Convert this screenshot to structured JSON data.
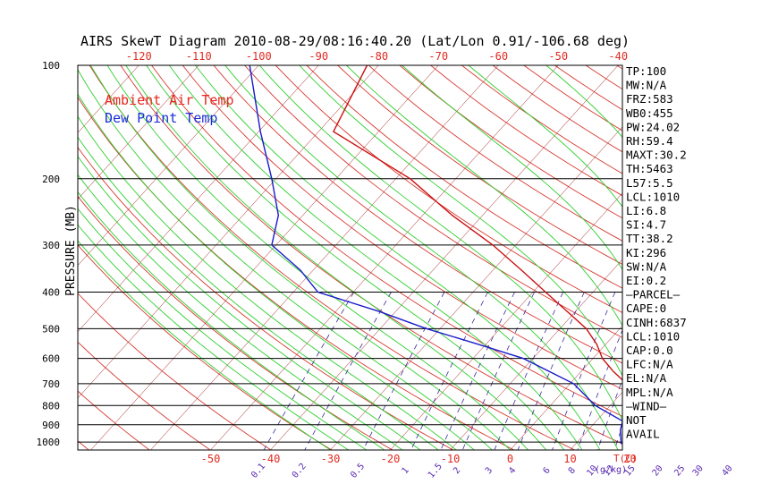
{
  "chart_data": {
    "type": "line",
    "title": "AIRS SkewT Diagram 2010-08-29/08:16:40.20 (Lat/Lon 0.91/-106.68 deg)",
    "ylabel": "PRESSURE (MB)",
    "x_units_label": "T(C)",
    "mixing_units_label": "(g/kg)",
    "ylim": [
      1050,
      100
    ],
    "y_scale": "log",
    "top_temp_ticks": [
      "-120",
      "-110",
      "-100",
      "-90",
      "-80",
      "-70",
      "-60",
      "-50",
      "-40"
    ],
    "bottom_temp_ticks": [
      "-50",
      "-40",
      "-30",
      "-20",
      "-10",
      "0",
      "10",
      "20"
    ],
    "mixing_ratio_ticks": [
      "0.1",
      "0.2",
      "0.5",
      "1",
      "1.5",
      "2",
      "3",
      "4",
      "6",
      "8",
      "10",
      "12",
      "15",
      "20",
      "25",
      "30",
      "40"
    ],
    "pressure_ticks": [
      "100",
      "200",
      "300",
      "400",
      "500",
      "600",
      "700",
      "800",
      "900",
      "1000"
    ],
    "legend": [
      {
        "name": "Ambient Air Temp",
        "color": "#e8261e"
      },
      {
        "name": "Dew Point Temp",
        "color": "#1a2fd8"
      }
    ],
    "series": [
      {
        "name": "Ambient Air Temp",
        "color": "#cc1010",
        "points": [
          {
            "p": 100,
            "t": -81.9
          },
          {
            "p": 150,
            "t": -77.5
          },
          {
            "p": 200,
            "t": -57.6
          },
          {
            "p": 250,
            "t": -45.1
          },
          {
            "p": 300,
            "t": -33.8
          },
          {
            "p": 350,
            "t": -25.2
          },
          {
            "p": 400,
            "t": -17.9
          },
          {
            "p": 450,
            "t": -11.4
          },
          {
            "p": 500,
            "t": -5.6
          },
          {
            "p": 550,
            "t": -1.5
          },
          {
            "p": 600,
            "t": 1.6
          },
          {
            "p": 650,
            "t": 5.4
          },
          {
            "p": 700,
            "t": 9.4
          },
          {
            "p": 800,
            "t": 14.9
          },
          {
            "p": 870,
            "t": 20.7
          },
          {
            "p": 930,
            "t": 18.4
          },
          {
            "p": 1000,
            "t": 19.4
          },
          {
            "p": 1013,
            "t": 19.6
          }
        ]
      },
      {
        "name": "Dew Point Temp",
        "color": "#1a1acc",
        "points": [
          {
            "p": 100,
            "t": -101.5
          },
          {
            "p": 150,
            "t": -89.7
          },
          {
            "p": 200,
            "t": -80.7
          },
          {
            "p": 250,
            "t": -74.1
          },
          {
            "p": 300,
            "t": -70.7
          },
          {
            "p": 350,
            "t": -62.1
          },
          {
            "p": 400,
            "t": -55.9
          },
          {
            "p": 450,
            "t": -42.8
          },
          {
            "p": 500,
            "t": -32.3
          },
          {
            "p": 550,
            "t": -21.3
          },
          {
            "p": 600,
            "t": -11.6
          },
          {
            "p": 700,
            "t": 0.6
          },
          {
            "p": 800,
            "t": 7.5
          },
          {
            "p": 880,
            "t": 14.4
          },
          {
            "p": 930,
            "t": 15.4
          },
          {
            "p": 1000,
            "t": 17.3
          },
          {
            "p": 1013,
            "t": 17.7
          }
        ]
      }
    ],
    "grid": true
  },
  "indices": [
    "TP:100",
    "MW:N/A",
    "FRZ:583",
    "WB0:455",
    "PW:24.02",
    "RH:59.4",
    "MAXT:30.2",
    "TH:5463",
    "L57:5.5",
    "LCL:1010",
    "LI:6.8",
    "SI:4.7",
    "TT:38.2",
    "KI:296",
    "SW:N/A",
    "EI:0.2",
    "–PARCEL–",
    "CAPE:0",
    "CINH:6837",
    "LCL:1010",
    "CAP:0.0",
    "LFC:N/A",
    "EL:N/A",
    "MPL:N/A",
    "–WIND–",
    "NOT",
    "AVAIL"
  ],
  "colors": {
    "dry_adiabat": "#d63a32",
    "moist_adiabat": "#2fcf2f",
    "mixing_ratio": "#3b2a9a",
    "isobar": "#000000",
    "axis_text_top_bottom": "#e02a20",
    "mixing_text": "#5a2bb0",
    "label_text": "#000000"
  }
}
